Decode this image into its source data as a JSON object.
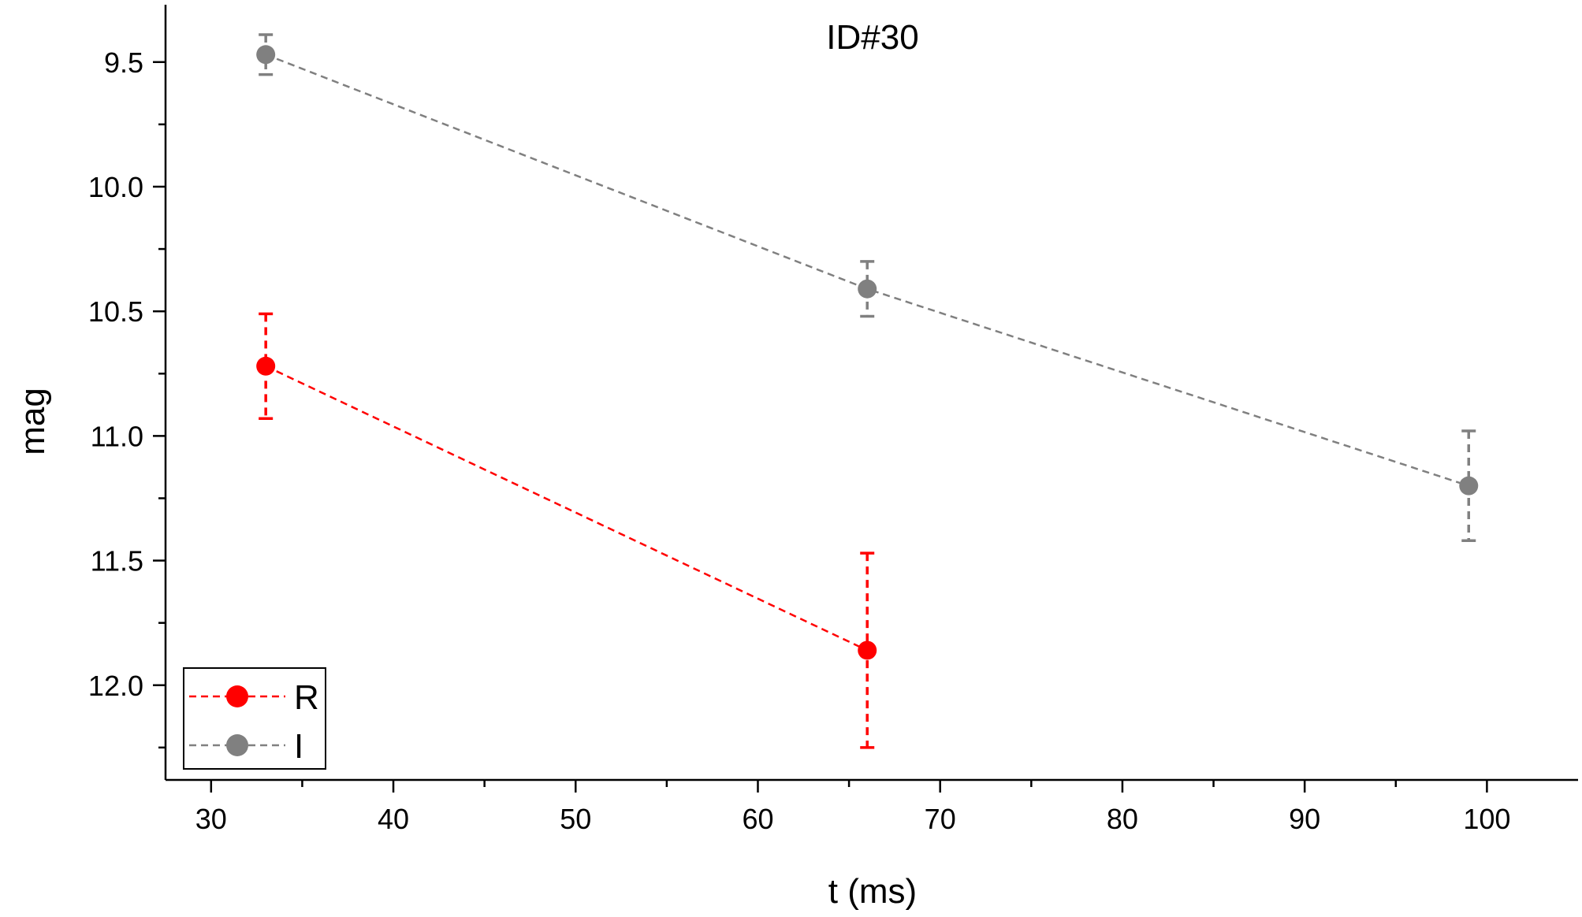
{
  "chart_data": {
    "type": "scatter",
    "title": "ID#30",
    "xlabel": "t (ms)",
    "ylabel": "mag",
    "xlim": [
      27.5,
      105
    ],
    "ylim": [
      9.27,
      12.38
    ],
    "y_inverted": true,
    "x_ticks": [
      30,
      40,
      50,
      60,
      70,
      80,
      90,
      100
    ],
    "x_tick_labels": [
      "30",
      "40",
      "50",
      "60",
      "70",
      "80",
      "90",
      "100"
    ],
    "y_ticks": [
      9.5,
      10.0,
      10.5,
      11.0,
      11.5,
      12.0
    ],
    "y_tick_labels": [
      "9.5",
      "10.0",
      "10.5",
      "11.0",
      "11.5",
      "12.0"
    ],
    "grid": false,
    "legend_position": "bottom-left",
    "series": [
      {
        "name": "R",
        "color": "#ff0000",
        "line_style": "dashed",
        "marker": "circle",
        "x": [
          33,
          66
        ],
        "y": [
          10.72,
          11.86
        ],
        "err_low": [
          0.21,
          0.39
        ],
        "err_high": [
          0.21,
          0.39
        ]
      },
      {
        "name": "I",
        "color": "#808080",
        "line_style": "dashed",
        "marker": "circle",
        "x": [
          33,
          66,
          99
        ],
        "y": [
          9.47,
          10.41,
          11.2
        ],
        "err_low": [
          0.08,
          0.11,
          0.22
        ],
        "err_high": [
          0.08,
          0.11,
          0.22
        ]
      }
    ]
  }
}
